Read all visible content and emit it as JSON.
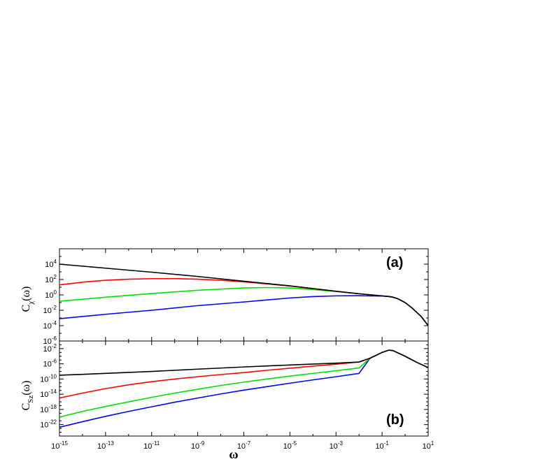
{
  "chart_data": [
    {
      "type": "line",
      "panel_label": "(a)",
      "ylabel": "C",
      "ylabel_sub": "χ",
      "ylabel_arg": "(ω)",
      "xlabel": "ω",
      "xscale": "log",
      "yscale": "log",
      "xlim": [
        1e-15,
        10.0
      ],
      "ylim": [
        1e-06,
        1000000.0
      ],
      "xticks": [
        -15,
        -13,
        -11,
        -9,
        -7,
        -5,
        -3,
        -1,
        1
      ],
      "yticks": [
        -6,
        -4,
        -2,
        0,
        2,
        4
      ],
      "grid": false,
      "legend": "none",
      "series": [
        {
          "color": "#000000",
          "x": [
            1e-15,
            1e-13,
            1e-11,
            1e-09,
            1e-07,
            1e-05,
            0.001,
            0.01,
            0.1,
            0.2,
            0.3,
            0.5,
            1,
            2,
            5,
            10
          ],
          "y": [
            10000,
            3000,
            900,
            250,
            60,
            15,
            3,
            1.4,
            0.75,
            0.62,
            0.5,
            0.3,
            0.1,
            0.02,
            0.0015,
            0.0001
          ]
        },
        {
          "color": "#ff0000",
          "x": [
            1e-15,
            1e-14,
            1e-13,
            1e-12,
            1e-11,
            1e-10,
            1e-09,
            1e-08,
            1e-07,
            1e-06,
            1e-05,
            0.0001,
            0.001,
            0.01,
            0.1,
            0.2,
            0.3,
            0.5,
            1,
            2,
            5,
            10
          ],
          "y": [
            20,
            45,
            80,
            110,
            130,
            130,
            110,
            80,
            50,
            27,
            14,
            6.5,
            3,
            1.4,
            0.75,
            0.62,
            0.5,
            0.3,
            0.1,
            0.02,
            0.0015,
            0.0001
          ]
        },
        {
          "color": "#00e000",
          "x": [
            1e-15,
            1e-13,
            1e-11,
            1e-09,
            1e-07,
            1e-06,
            1e-05,
            0.0001,
            0.001,
            0.01,
            0.1,
            0.2,
            0.3,
            0.5,
            1,
            2,
            5,
            10
          ],
          "y": [
            0.15,
            0.5,
            1.5,
            4,
            8,
            9,
            8,
            5,
            2.7,
            1.4,
            0.75,
            0.62,
            0.5,
            0.3,
            0.1,
            0.02,
            0.0015,
            0.0001
          ]
        },
        {
          "color": "#0000ff",
          "x": [
            1e-15,
            1e-13,
            1e-11,
            1e-09,
            1e-07,
            1e-05,
            0.0001,
            0.001,
            0.01,
            0.1,
            0.2,
            0.3,
            0.5,
            1,
            2,
            5,
            10
          ],
          "y": [
            0.0008,
            0.003,
            0.01,
            0.04,
            0.12,
            0.4,
            0.6,
            0.75,
            0.78,
            0.7,
            0.6,
            0.48,
            0.3,
            0.1,
            0.02,
            0.0015,
            0.0001
          ]
        }
      ]
    },
    {
      "type": "line",
      "panel_label": "(b)",
      "ylabel": "C",
      "ylabel_sub": "Sz",
      "ylabel_arg": "(ω)",
      "xlabel": "ω",
      "xscale": "log",
      "yscale": "log",
      "xlim": [
        1e-15,
        10.0
      ],
      "ylim": [
        1e-25,
        1.0
      ],
      "xticks": [
        -15,
        -13,
        -11,
        -9,
        -7,
        -5,
        -3,
        -1,
        1
      ],
      "yticks": [
        -22,
        -18,
        -14,
        -10,
        -6,
        -2
      ],
      "grid": false,
      "legend": "none",
      "series": [
        {
          "color": "#000000",
          "x": [
            1e-15,
            1e-13,
            1e-11,
            1e-09,
            1e-07,
            1e-05,
            0.001,
            0.01,
            0.03,
            0.1,
            0.2,
            0.3,
            1,
            3,
            10
          ],
          "y": [
            1e-09,
            3e-09,
            1e-08,
            4e-08,
            1.5e-07,
            5e-07,
            1.5e-06,
            3e-06,
            3e-05,
            0.001,
            0.004,
            0.003,
            0.0001,
            3e-06,
            1e-07
          ]
        },
        {
          "color": "#ff0000",
          "x": [
            1e-15,
            1e-14,
            1e-13,
            1e-12,
            1e-11,
            1e-10,
            1e-09,
            1e-08,
            1e-07,
            1e-06,
            1e-05,
            0.0001,
            0.001,
            0.01,
            0.03,
            0.1,
            0.2,
            0.3,
            1,
            3,
            10
          ],
          "y": [
            1e-15,
            2e-14,
            3e-13,
            3e-12,
            2e-11,
            1e-10,
            4e-10,
            1.5e-09,
            5e-09,
            2e-08,
            7e-08,
            2.5e-07,
            8e-07,
            3e-06,
            3e-05,
            0.001,
            0.004,
            0.003,
            0.0001,
            3e-06,
            1e-07
          ]
        },
        {
          "color": "#00e000",
          "x": [
            1e-15,
            1e-14,
            1e-13,
            1e-12,
            1e-11,
            1e-10,
            1e-09,
            1e-08,
            1e-07,
            1e-06,
            1e-05,
            0.0001,
            0.001,
            0.01,
            0.03,
            0.1,
            0.2,
            0.3,
            1,
            3,
            10
          ],
          "y": [
            1e-20,
            3e-19,
            6e-18,
            1e-16,
            1.5e-15,
            2e-14,
            2e-13,
            2e-12,
            1.5e-11,
            1e-10,
            6e-10,
            3e-09,
            1.5e-08,
            8e-08,
            3e-05,
            0.001,
            0.004,
            0.003,
            0.0001,
            3e-06,
            1e-07
          ]
        },
        {
          "color": "#0000ff",
          "x": [
            1e-15,
            1e-14,
            1e-13,
            1e-12,
            1e-11,
            1e-10,
            1e-09,
            1e-08,
            1e-07,
            1e-06,
            1e-05,
            0.0001,
            0.001,
            0.01,
            0.03,
            0.1,
            0.2,
            0.3,
            1,
            3,
            10
          ],
          "y": [
            2e-23,
            6e-22,
            1.5e-20,
            3e-19,
            5e-18,
            8e-17,
            1e-15,
            1.2e-14,
            1.2e-13,
            1e-12,
            8e-12,
            6e-11,
            4e-10,
            3e-09,
            3e-05,
            0.001,
            0.004,
            0.003,
            0.0001,
            3e-06,
            1e-07
          ]
        }
      ]
    }
  ]
}
